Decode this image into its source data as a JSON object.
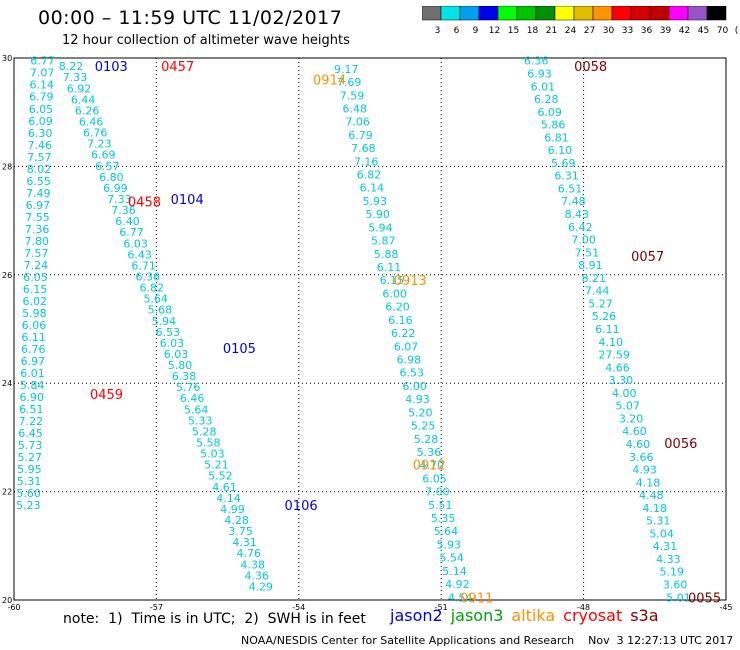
{
  "header": {
    "title": "00:00 – 11:59 UTC 11/02/2017",
    "subtitle": "12 hour collection of altimeter wave heights"
  },
  "colorbar": {
    "colors": [
      "#707070",
      "#00e4e4",
      "#00a0f0",
      "#0000e8",
      "#00ff00",
      "#00c400",
      "#009000",
      "#ffff00",
      "#e4bc00",
      "#ff9400",
      "#ff0000",
      "#d60000",
      "#c00000",
      "#ff00ff",
      "#9955c8",
      "#000000"
    ],
    "labels": [
      "3",
      "6",
      "9",
      "12",
      "15",
      "18",
      "21",
      "24",
      "27",
      "30",
      "33",
      "36",
      "39",
      "42",
      "45",
      "70",
      "(ft)"
    ]
  },
  "chart_data": {
    "type": "scatter",
    "xlim": [
      -60,
      -45
    ],
    "ylim": [
      20,
      30
    ],
    "xticks": [
      "-60",
      "-57",
      "-54",
      "-51",
      "-48",
      "-45"
    ],
    "yticks": [
      "20",
      "22",
      "24",
      "26",
      "28",
      "30"
    ],
    "grid": true,
    "value_color": "#00c8dc",
    "tracks": [
      {
        "id": "t1",
        "values": [
          "6.77",
          "7.07",
          "6.14",
          "6.79",
          "6.05",
          "6.09",
          "6.30",
          "7.46",
          "7.57",
          "8.02",
          "6.55",
          "7.49",
          "6.97",
          "7.55",
          "7.36",
          "7.80",
          "7.57",
          "7.24",
          "6.05",
          "6.15",
          "6.02",
          "5.98",
          "6.06",
          "6.11",
          "6.76",
          "6.97",
          "6.01",
          "5.84",
          "6.90",
          "6.51",
          "7.22",
          "6.45",
          "5.73",
          "5.27",
          "5.95",
          "5.31",
          "5.60",
          "5.23"
        ],
        "lat_start": 29.95,
        "lat_end": 21.75,
        "lon_start": -59.4,
        "lon_end": -59.7
      },
      {
        "id": "t2",
        "values": [
          "8.22",
          "7.33",
          "6.92",
          "6.44",
          "6.26",
          "6.46",
          "6.76",
          "7.23",
          "6.69",
          "6.57",
          "6.80",
          "6.99",
          "7.33",
          "7.36",
          "6.40",
          "6.77",
          "6.03",
          "6.43",
          "6.71",
          "6.36",
          "6.82",
          "5.64",
          "5.68",
          "5.94",
          "6.53",
          "6.03",
          "6.03",
          "5.80",
          "6.38",
          "5.76",
          "6.46",
          "5.64",
          "5.33",
          "5.28",
          "5.58",
          "5.03",
          "5.21",
          "5.52",
          "4.61",
          "4.14",
          "4.99",
          "4.28",
          "3.75",
          "4.31",
          "4.76",
          "4.38",
          "4.36",
          "4.29"
        ],
        "lat_start": 29.85,
        "lat_end": 20.25,
        "lon_start": -58.8,
        "lon_end": -54.8
      },
      {
        "id": "t3",
        "values": [
          "9.17",
          "7.69",
          "7.59",
          "6.48",
          "7.06",
          "6.79",
          "7.68",
          "7.16",
          "6.82",
          "6.14",
          "5.93",
          "5.90",
          "5.94",
          "5.87",
          "5.88",
          "6.11",
          "6.15",
          "6.00",
          "6.20",
          "6.16",
          "6.22",
          "6.07",
          "6.98",
          "6.53",
          "6.00",
          "4.93",
          "5.20",
          "5.25",
          "5.28",
          "5.36",
          "4.70",
          "6.05",
          "7.00",
          "5.51",
          "5.35",
          "5.64",
          "5.93",
          "5.54",
          "5.14",
          "4.92",
          "4.54"
        ],
        "lat_start": 29.8,
        "lat_end": 20.05,
        "lon_start": -53.0,
        "lon_end": -50.6
      },
      {
        "id": "t4",
        "values": [
          "6.36",
          "6.93",
          "6.01",
          "6.28",
          "6.09",
          "5.86",
          "6.81",
          "6.10",
          "5.69",
          "6.31",
          "6.51",
          "7.48",
          "8.43",
          "6.42",
          "7.00",
          "7.51",
          "8.91",
          "8.21",
          "7.44",
          "5.27",
          "5.26",
          "6.11",
          "4.10",
          "27.59",
          "4.66",
          "3.30",
          "4.00",
          "5.07",
          "3.20",
          "4.60",
          "4.60",
          "3.66",
          "4.93",
          "4.18",
          "4.48",
          "4.18",
          "5.31",
          "5.04",
          "4.31",
          "4.33",
          "5.19",
          "3.60",
          "5.01"
        ],
        "lat_start": 29.95,
        "lat_end": 20.05,
        "lon_start": -49.0,
        "lon_end": -46.0
      }
    ],
    "pass_labels": [
      {
        "text": "0103",
        "sat": "jason2",
        "lat": 29.85,
        "lon": -58.3
      },
      {
        "text": "0457",
        "sat": "cryosat",
        "lat": 29.85,
        "lon": -56.9
      },
      {
        "text": "0104",
        "sat": "jason2",
        "lat": 27.4,
        "lon": -56.7
      },
      {
        "text": "0458",
        "sat": "cryosat",
        "lat": 27.35,
        "lon": -57.6
      },
      {
        "text": "0105",
        "sat": "jason2",
        "lat": 24.65,
        "lon": -55.6
      },
      {
        "text": "0459",
        "sat": "cryosat",
        "lat": 23.8,
        "lon": -58.4
      },
      {
        "text": "0106",
        "sat": "jason2",
        "lat": 21.75,
        "lon": -54.3
      },
      {
        "text": "0914",
        "sat": "altika",
        "lat": 29.6,
        "lon": -53.7
      },
      {
        "text": "0913",
        "sat": "altika",
        "lat": 25.9,
        "lon": -52.0
      },
      {
        "text": "0912",
        "sat": "altika",
        "lat": 22.5,
        "lon": -51.6
      },
      {
        "text": "0911",
        "sat": "altika",
        "lat": 20.05,
        "lon": -50.6
      },
      {
        "text": "0058",
        "sat": "s3a",
        "lat": 29.85,
        "lon": -48.2
      },
      {
        "text": "0057",
        "sat": "s3a",
        "lat": 26.35,
        "lon": -47.0
      },
      {
        "text": "0056",
        "sat": "s3a",
        "lat": 22.9,
        "lon": -46.3
      },
      {
        "text": "0055",
        "sat": "s3a",
        "lat": 20.05,
        "lon": -45.8
      }
    ],
    "sat_colors": {
      "jason2": "#0000e0",
      "jason3": "#00a000",
      "altika": "#ff9000",
      "cryosat": "#ff0000",
      "s3a": "#800000"
    }
  },
  "footer": {
    "note": "note:  1)  Time is in UTC;  2)  SWH is in feet",
    "legend": [
      {
        "name": "jason2",
        "color": "#0000e0"
      },
      {
        "name": "jason3",
        "color": "#00a000"
      },
      {
        "name": "altika",
        "color": "#ff9000"
      },
      {
        "name": "cryosat",
        "color": "#ff0000"
      },
      {
        "name": "s3a",
        "color": "#800000"
      }
    ],
    "credits": "NOAA/NESDIS Center for Satellite Applications and Research    Nov  3 12:27:13 UTC 2017"
  }
}
